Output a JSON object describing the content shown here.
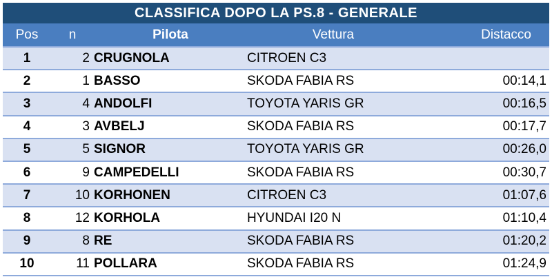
{
  "title": "CLASSIFICA DOPO LA PS.8 - GENERALE",
  "columns": {
    "pos": "Pos",
    "n": "n",
    "pilota": "Pilota",
    "vettura": "Vettura",
    "distacco": "Distacco"
  },
  "rows": [
    {
      "pos": "1",
      "n": "2",
      "pilota": "CRUGNOLA",
      "vettura": "CITROEN C3",
      "distacco": ""
    },
    {
      "pos": "2",
      "n": "1",
      "pilota": "BASSO",
      "vettura": "SKODA FABIA RS",
      "distacco": "00:14,1"
    },
    {
      "pos": "3",
      "n": "4",
      "pilota": "ANDOLFI",
      "vettura": "TOYOTA YARIS GR",
      "distacco": "00:16,5"
    },
    {
      "pos": "4",
      "n": "3",
      "pilota": "AVBELJ",
      "vettura": "SKODA FABIA RS",
      "distacco": "00:17,7"
    },
    {
      "pos": "5",
      "n": "5",
      "pilota": "SIGNOR",
      "vettura": "TOYOTA YARIS GR",
      "distacco": "00:26,0"
    },
    {
      "pos": "6",
      "n": "9",
      "pilota": "CAMPEDELLI",
      "vettura": "SKODA FABIA RS",
      "distacco": "00:30,7"
    },
    {
      "pos": "7",
      "n": "10",
      "pilota": "KORHONEN",
      "vettura": "CITROEN C3",
      "distacco": "01:07,6"
    },
    {
      "pos": "8",
      "n": "12",
      "pilota": "KORHOLA",
      "vettura": "HYUNDAI I20 N",
      "distacco": "01:10,4"
    },
    {
      "pos": "9",
      "n": "8",
      "pilota": "RE",
      "vettura": "SKODA FABIA RS",
      "distacco": "01:20,2"
    },
    {
      "pos": "10",
      "n": "11",
      "pilota": "POLLARA",
      "vettura": "SKODA FABIA RS",
      "distacco": "01:24,9"
    }
  ],
  "colors": {
    "title_bg": "#1f4e79",
    "header_bg": "#4a7ec0",
    "row_alt_bg": "#d9e1f2",
    "row_border": "#8eaadb"
  }
}
